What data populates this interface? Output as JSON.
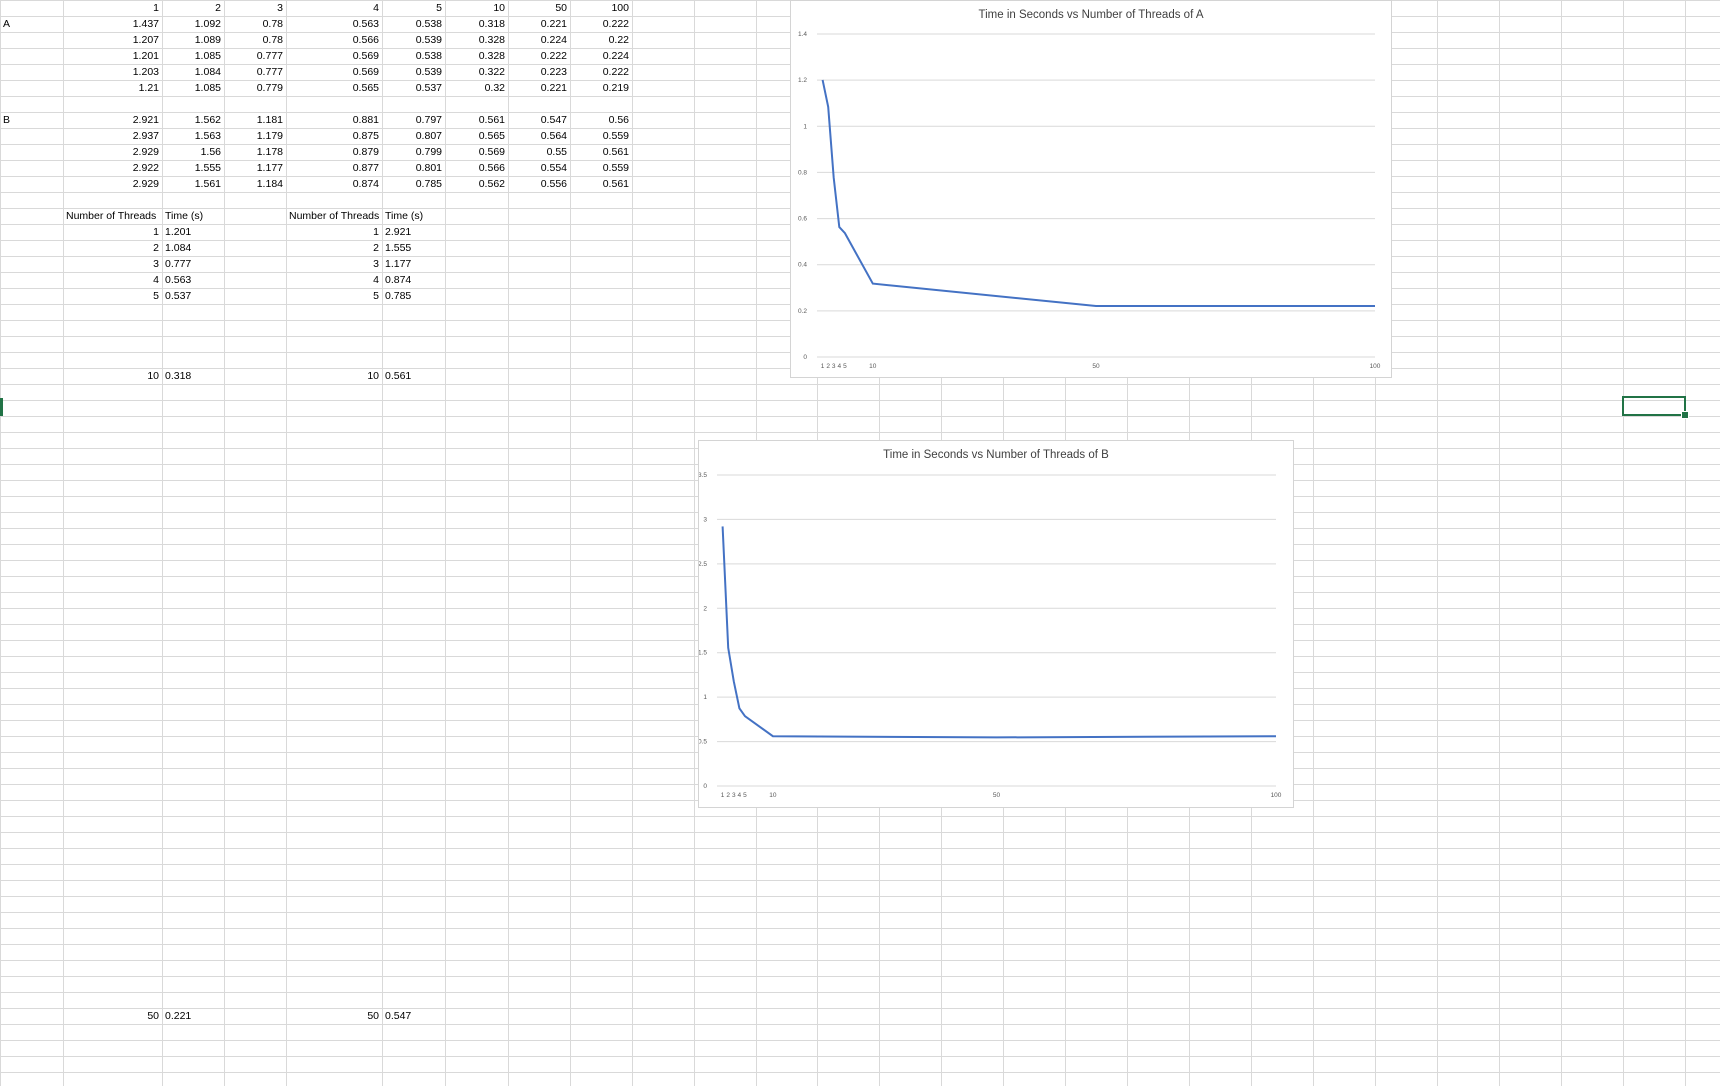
{
  "sheet": {
    "row_label_a": "A",
    "row_label_b": "B",
    "thread_header": [
      "1",
      "2",
      "3",
      "4",
      "5",
      "10",
      "50",
      "100"
    ],
    "a_rows": [
      [
        "1.437",
        "1.092",
        "0.78",
        "0.563",
        "0.538",
        "0.318",
        "0.221",
        "0.222"
      ],
      [
        "1.207",
        "1.089",
        "0.78",
        "0.566",
        "0.539",
        "0.328",
        "0.224",
        "0.22"
      ],
      [
        "1.201",
        "1.085",
        "0.777",
        "0.569",
        "0.538",
        "0.328",
        "0.222",
        "0.224"
      ],
      [
        "1.203",
        "1.084",
        "0.777",
        "0.569",
        "0.539",
        "0.322",
        "0.223",
        "0.222"
      ],
      [
        "1.21",
        "1.085",
        "0.779",
        "0.565",
        "0.537",
        "0.32",
        "0.221",
        "0.219"
      ]
    ],
    "b_rows": [
      [
        "2.921",
        "1.562",
        "1.181",
        "0.881",
        "0.797",
        "0.561",
        "0.547",
        "0.56"
      ],
      [
        "2.937",
        "1.563",
        "1.179",
        "0.875",
        "0.807",
        "0.565",
        "0.564",
        "0.559"
      ],
      [
        "2.929",
        "1.56",
        "1.178",
        "0.879",
        "0.799",
        "0.569",
        "0.55",
        "0.561"
      ],
      [
        "2.922",
        "1.555",
        "1.177",
        "0.877",
        "0.801",
        "0.566",
        "0.554",
        "0.559"
      ],
      [
        "2.929",
        "1.561",
        "1.184",
        "0.874",
        "0.785",
        "0.562",
        "0.556",
        "0.561"
      ]
    ],
    "summary_a": {
      "threads_header": "Number of Threads",
      "time_header": "Time (s)",
      "rows": [
        [
          "1",
          "1.201"
        ],
        [
          "2",
          "1.084"
        ],
        [
          "3",
          "0.777"
        ],
        [
          "4",
          "0.563"
        ],
        [
          "5",
          "0.537"
        ]
      ],
      "row_10": [
        "10",
        "0.318"
      ],
      "row_50": [
        "50",
        "0.221"
      ]
    },
    "summary_b": {
      "threads_header": "Number of Threads",
      "time_header": "Time (s)",
      "rows": [
        [
          "1",
          "2.921"
        ],
        [
          "2",
          "1.555"
        ],
        [
          "3",
          "1.177"
        ],
        [
          "4",
          "0.874"
        ],
        [
          "5",
          "0.785"
        ]
      ],
      "row_10": [
        "10",
        "0.561"
      ],
      "row_50": [
        "50",
        "0.547"
      ]
    }
  },
  "colors": {
    "grid": "#d9d9d9",
    "series": "#4472c4",
    "selection": "#217346",
    "chart_gridline": "#d9d9d9"
  },
  "chart_data": [
    {
      "type": "line",
      "title": "Time in Seconds vs Number of Threads of A",
      "x": [
        1,
        2,
        3,
        4,
        5,
        10,
        50,
        100
      ],
      "x_tick_labels": [
        "1",
        "2",
        "3",
        "4",
        "5",
        "10",
        "50",
        "100"
      ],
      "series": [
        {
          "values": [
            1.201,
            1.084,
            0.777,
            0.563,
            0.537,
            0.318,
            0.221,
            0.221
          ]
        }
      ],
      "y_ticks": [
        "0",
        "0.2",
        "0.4",
        "0.6",
        "0.8",
        "1",
        "1.2",
        "1.4"
      ],
      "xlim": [
        0,
        100
      ],
      "ylim": [
        0,
        1.4
      ],
      "grid": true,
      "legend": "none"
    },
    {
      "type": "line",
      "title": "Time in Seconds vs Number of Threads of B",
      "x": [
        1,
        2,
        3,
        4,
        5,
        10,
        50,
        100
      ],
      "x_tick_labels": [
        "1",
        "2",
        "3",
        "4",
        "5",
        "10",
        "50",
        "100"
      ],
      "series": [
        {
          "values": [
            2.921,
            1.555,
            1.177,
            0.874,
            0.785,
            0.561,
            0.547,
            0.561
          ]
        }
      ],
      "y_ticks": [
        "0",
        "0.5",
        "1",
        "1.5",
        "2",
        "2.5",
        "3",
        "3.5"
      ],
      "xlim": [
        0,
        100
      ],
      "ylim": [
        0,
        3.5
      ],
      "grid": true,
      "legend": "none"
    }
  ]
}
